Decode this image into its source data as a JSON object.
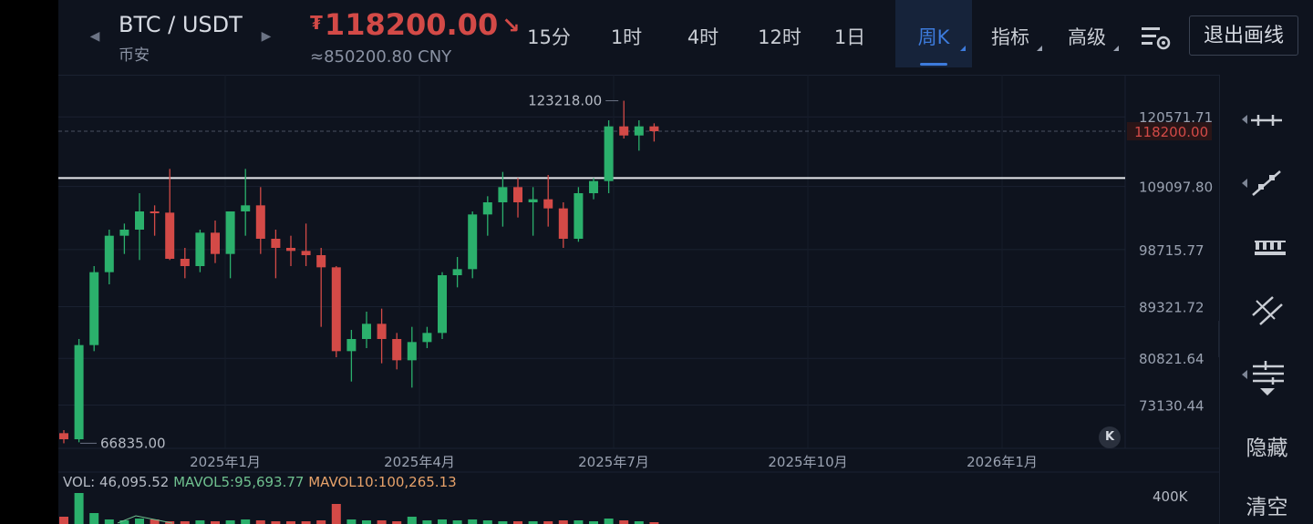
{
  "header": {
    "pair": "BTC / USDT",
    "exchange": "币安",
    "currency_symbol": "₮",
    "price": "118200.00",
    "price_direction_icon": "arrow-down-right-icon",
    "price_cny": "≈850200.80 CNY",
    "timeframes": [
      {
        "label": "15分",
        "active": false,
        "menu": false
      },
      {
        "label": "1时",
        "active": false,
        "menu": false
      },
      {
        "label": "4时",
        "active": false,
        "menu": false
      },
      {
        "label": "12时",
        "active": false,
        "menu": false
      },
      {
        "label": "1日",
        "active": false,
        "menu": false
      },
      {
        "label": "周K",
        "active": true,
        "menu": true
      },
      {
        "label": "指标",
        "active": false,
        "menu": true
      },
      {
        "label": "高级",
        "active": false,
        "menu": true
      }
    ],
    "settings_icon": "chart-settings-icon",
    "exit_label": "退出画线"
  },
  "toolbar": {
    "tools": [
      {
        "name": "horizontal-line-icon"
      },
      {
        "name": "trend-line-icon"
      },
      {
        "name": "price-range-icon"
      },
      {
        "name": "parallel-channel-icon"
      },
      {
        "name": "fibonacci-icon"
      }
    ],
    "hide_label": "隐藏",
    "clear_label": "清空"
  },
  "colors": {
    "up": "#2bb06c",
    "down": "#d34a47",
    "accent": "#3d7bdc",
    "background": "#0e131e"
  },
  "chart_data": {
    "type": "candlestick",
    "interval": "周K",
    "y_ticks": [
      "120571.71",
      "109097.80",
      "98715.77",
      "89321.72",
      "80821.64",
      "73130.44"
    ],
    "x_ticks": [
      "2025年1月",
      "2025年4月",
      "2025年7月",
      "2025年10月",
      "2026年1月"
    ],
    "current_price_label": "118200.00",
    "current_price": 118200,
    "drawn_horizontal_line": 110500,
    "max_label": "123218.00",
    "min_label": "66835.00",
    "ylim": [
      66000,
      127500
    ],
    "candles": [
      [
        68500,
        69000,
        66835,
        67500
      ],
      [
        67500,
        84000,
        67000,
        83000
      ],
      [
        83000,
        96000,
        82000,
        95000
      ],
      [
        95000,
        102000,
        93000,
        101000
      ],
      [
        101000,
        103000,
        98000,
        102000
      ],
      [
        102000,
        108000,
        97000,
        105000
      ],
      [
        105000,
        106000,
        101000,
        104800
      ],
      [
        104800,
        112000,
        97000,
        97200
      ],
      [
        97200,
        99000,
        94000,
        96000
      ],
      [
        96000,
        102000,
        95000,
        101500
      ],
      [
        101500,
        103500,
        96500,
        98000
      ],
      [
        98000,
        105000,
        94000,
        105000
      ],
      [
        105000,
        112000,
        101000,
        106000
      ],
      [
        106000,
        109000,
        98000,
        100500
      ],
      [
        100500,
        102000,
        94000,
        99000
      ],
      [
        99000,
        101000,
        96000,
        98500
      ],
      [
        98500,
        103000,
        96000,
        97800
      ],
      [
        97800,
        99000,
        86000,
        95800
      ],
      [
        95800,
        96000,
        81000,
        82000
      ],
      [
        82000,
        85500,
        77000,
        84000
      ],
      [
        84000,
        88500,
        82500,
        86500
      ],
      [
        86500,
        89000,
        80000,
        84000
      ],
      [
        84000,
        85000,
        79000,
        80500
      ],
      [
        80500,
        86000,
        76000,
        83500
      ],
      [
        83500,
        86000,
        82500,
        85000
      ],
      [
        85000,
        95000,
        84000,
        94500
      ],
      [
        94500,
        97500,
        92500,
        95500
      ],
      [
        95500,
        105000,
        94000,
        104500
      ],
      [
        104500,
        107500,
        101000,
        106500
      ],
      [
        106500,
        111500,
        102500,
        109000
      ],
      [
        109000,
        110500,
        104000,
        106500
      ],
      [
        106500,
        109000,
        101000,
        107000
      ],
      [
        107000,
        111000,
        102500,
        105500
      ],
      [
        105500,
        106500,
        99000,
        100500
      ],
      [
        100500,
        109000,
        100000,
        108000
      ],
      [
        108000,
        110500,
        107000,
        110000
      ],
      [
        110000,
        120000,
        108000,
        119000
      ],
      [
        119000,
        123218,
        117000,
        117500
      ],
      [
        117500,
        120000,
        115000,
        119000
      ],
      [
        119000,
        119500,
        116500,
        118200
      ]
    ]
  },
  "volume": {
    "vol_label": "VOL: 46,095.52",
    "mavol5_label": "MAVOL5:95,693.77",
    "mavol10_label": "MAVOL10:100,265.13",
    "axis_label": "400K"
  }
}
